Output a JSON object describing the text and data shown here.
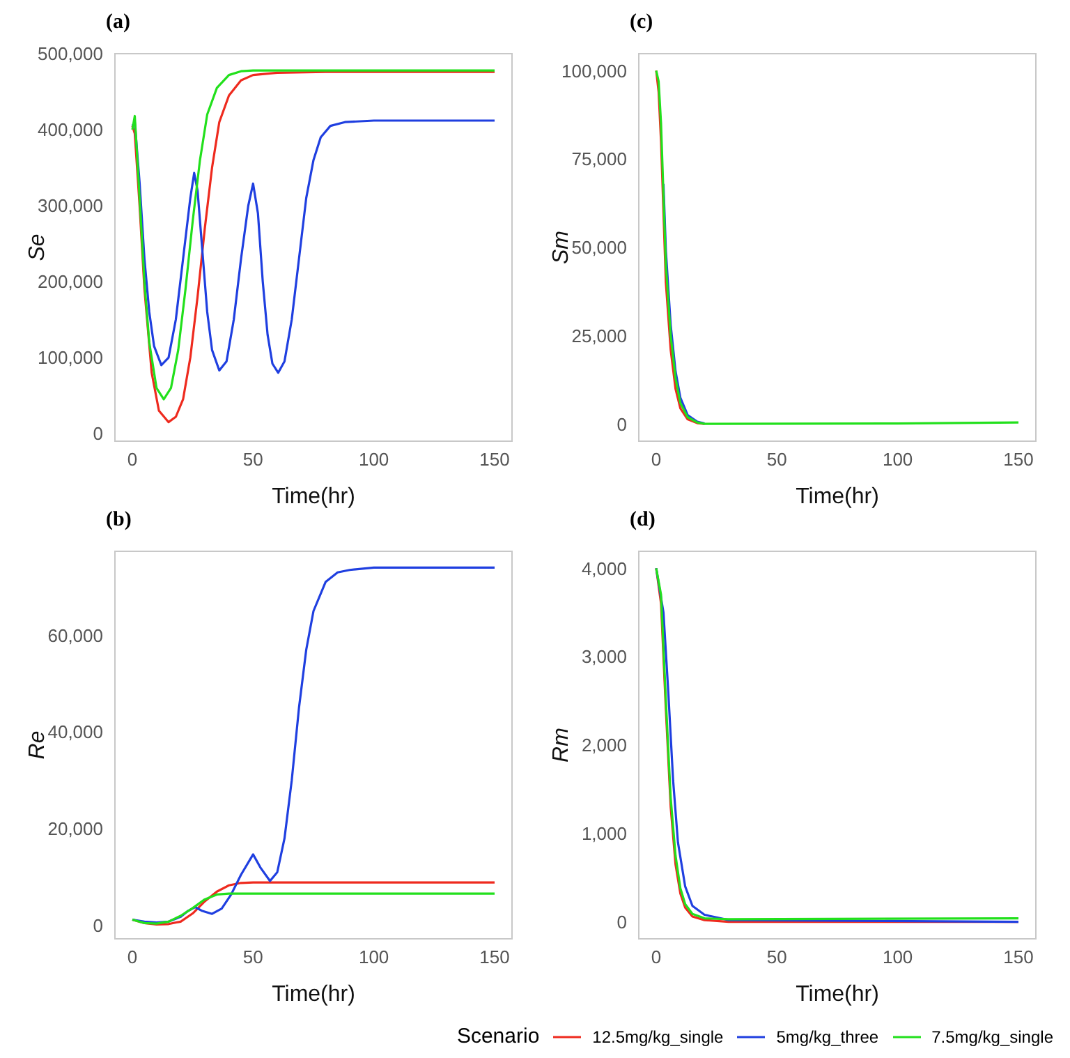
{
  "chart_data": [
    {
      "type": "line",
      "title": "(a)",
      "xlabel": "Time(hr)",
      "ylabel": "Se",
      "xlim": [
        -7.5,
        157.5
      ],
      "xticks": [
        0,
        50,
        100,
        150
      ],
      "ylim": [
        -11000,
        501000
      ],
      "yticks": [
        {
          "value": 0,
          "label": "0"
        },
        {
          "value": 100000,
          "label": "100,000"
        },
        {
          "value": 200000,
          "label": "200,000"
        },
        {
          "value": 300000,
          "label": "300,000"
        },
        {
          "value": 400000,
          "label": "400,000"
        },
        {
          "value": 500000,
          "label": "500,000"
        }
      ],
      "grid": false,
      "series": [
        {
          "color": "#ee2a1e",
          "x": [
            0,
            1,
            3,
            5,
            8,
            11,
            15,
            18,
            21,
            24,
            27,
            30,
            33,
            36,
            40,
            45,
            50,
            60,
            80,
            150
          ],
          "values": [
            405000,
            395000,
            300000,
            190000,
            80000,
            30000,
            15000,
            22000,
            45000,
            100000,
            180000,
            270000,
            350000,
            410000,
            445000,
            465000,
            472000,
            475000,
            476000,
            476000
          ]
        },
        {
          "color": "#1f3fe0",
          "x": [
            0,
            1,
            3,
            5,
            7,
            9,
            12,
            15,
            18,
            21,
            24,
            25.6,
            27,
            29,
            31,
            33,
            36,
            39,
            42,
            45,
            48,
            50,
            52,
            54,
            56,
            58,
            60.4,
            63,
            66,
            69,
            72,
            75,
            78,
            82,
            88,
            100,
            150
          ],
          "values": [
            405000,
            410000,
            330000,
            230000,
            160000,
            115000,
            90000,
            100000,
            150000,
            230000,
            310000,
            343000,
            320000,
            240000,
            160000,
            110000,
            83000,
            95000,
            150000,
            230000,
            300000,
            329000,
            290000,
            200000,
            130000,
            92000,
            80000,
            95000,
            150000,
            230000,
            310000,
            360000,
            390000,
            405000,
            410000,
            412000,
            412000
          ]
        },
        {
          "color": "#22e01c",
          "x": [
            0,
            1,
            3,
            5,
            7,
            10,
            13,
            16,
            19,
            22,
            25,
            28,
            31,
            35,
            40,
            45,
            50,
            150
          ],
          "values": [
            400000,
            418000,
            310000,
            200000,
            120000,
            60000,
            45000,
            60000,
            110000,
            190000,
            280000,
            360000,
            420000,
            455000,
            472000,
            477000,
            478000,
            478000
          ]
        }
      ]
    },
    {
      "type": "line",
      "title": "(c)",
      "xlabel": "Time(hr)",
      "ylabel": "Sm",
      "xlim": [
        -7.5,
        157.5
      ],
      "xticks": [
        0,
        50,
        100,
        150
      ],
      "ylim": [
        -5000,
        105000
      ],
      "yticks": [
        {
          "value": 0,
          "label": "0"
        },
        {
          "value": 25000,
          "label": "25,000"
        },
        {
          "value": 50000,
          "label": "50,000"
        },
        {
          "value": 75000,
          "label": "75,000"
        },
        {
          "value": 100000,
          "label": "100,000"
        }
      ],
      "grid": false,
      "series": [
        {
          "color": "#ee2a1e",
          "x": [
            0,
            1,
            2,
            3,
            4,
            6,
            8,
            10,
            13,
            17,
            20
          ],
          "values": [
            100000,
            94000,
            80000,
            60000,
            40000,
            21000,
            10000,
            4500,
            1400,
            300,
            100
          ]
        },
        {
          "color": "#1f3fe0",
          "x": [
            3,
            4,
            6,
            8,
            10,
            13,
            17,
            20
          ],
          "values": [
            68000,
            49000,
            28000,
            15000,
            7500,
            2600,
            700,
            200
          ]
        },
        {
          "color": "#22e01c",
          "x": [
            0,
            1,
            2,
            3,
            4,
            6,
            8,
            10,
            13,
            17,
            20,
            100,
            150
          ],
          "values": [
            100000,
            97000,
            85000,
            65000,
            45000,
            25000,
            13000,
            6000,
            2000,
            500,
            100,
            200,
            500
          ]
        }
      ]
    },
    {
      "type": "line",
      "title": "(b)",
      "xlabel": "Time(hr)",
      "ylabel": "Re",
      "xlim": [
        -7.5,
        157.5
      ],
      "xticks": [
        0,
        50,
        100,
        150
      ],
      "ylim": [
        -2900,
        77500
      ],
      "yticks": [
        {
          "value": 0,
          "label": "0"
        },
        {
          "value": 20000,
          "label": "20,000"
        },
        {
          "value": 40000,
          "label": "40,000"
        },
        {
          "value": 60000,
          "label": "60,000"
        }
      ],
      "grid": false,
      "series": [
        {
          "color": "#ee2a1e",
          "x": [
            0,
            5,
            10,
            15,
            20,
            25,
            30,
            35,
            40,
            45,
            50,
            150
          ],
          "values": [
            1200,
            500,
            200,
            300,
            800,
            2500,
            5000,
            7000,
            8300,
            8800,
            8900,
            8900
          ]
        },
        {
          "color": "#1f3fe0",
          "x": [
            0,
            5,
            10,
            15,
            20,
            23,
            26,
            29,
            33,
            37,
            41,
            45,
            50,
            53,
            57,
            60,
            63,
            66,
            69,
            72,
            75,
            80,
            85,
            90,
            100,
            150
          ],
          "values": [
            1200,
            800,
            600,
            800,
            1800,
            3000,
            3800,
            3000,
            2400,
            3500,
            6500,
            10500,
            14700,
            12000,
            9200,
            11000,
            18000,
            30000,
            45000,
            57000,
            65000,
            71000,
            73000,
            73500,
            74000,
            74000
          ]
        },
        {
          "color": "#22e01c",
          "x": [
            0,
            5,
            10,
            15,
            20,
            25,
            30,
            35,
            40,
            150
          ],
          "values": [
            1200,
            500,
            400,
            800,
            2000,
            3600,
            5400,
            6400,
            6600,
            6600
          ]
        }
      ]
    },
    {
      "type": "line",
      "title": "(d)",
      "xlabel": "Time(hr)",
      "ylabel": "Rm",
      "xlim": [
        -7.5,
        157.5
      ],
      "xticks": [
        0,
        50,
        100,
        150
      ],
      "ylim": [
        -200,
        4200
      ],
      "yticks": [
        {
          "value": 0,
          "label": "0"
        },
        {
          "value": 1000,
          "label": "1,000"
        },
        {
          "value": 2000,
          "label": "2,000"
        },
        {
          "value": 3000,
          "label": "3,000"
        },
        {
          "value": 4000,
          "label": "4,000"
        }
      ],
      "grid": false,
      "legend": "bottom",
      "legend_title": "Scenario",
      "series": [
        {
          "name": "12.5mg/kg_single",
          "color": "#ee2a1e",
          "x": [
            0,
            2,
            4,
            6,
            8,
            10,
            12,
            15,
            20,
            30,
            150
          ],
          "values": [
            4000,
            3600,
            2400,
            1300,
            650,
            320,
            160,
            60,
            20,
            0,
            0
          ]
        },
        {
          "name": "5mg/kg_three",
          "color": "#1f3fe0",
          "x": [
            0,
            3,
            5,
            7,
            9,
            12,
            15,
            20,
            25,
            30,
            150
          ],
          "values": [
            4000,
            3500,
            2600,
            1600,
            900,
            400,
            180,
            80,
            50,
            20,
            0
          ]
        },
        {
          "name": "7.5mg/kg_single",
          "color": "#22e01c",
          "x": [
            0,
            2,
            4,
            6,
            8,
            10,
            12,
            15,
            20,
            30,
            150
          ],
          "values": [
            4000,
            3700,
            2500,
            1400,
            750,
            380,
            200,
            90,
            40,
            30,
            40
          ]
        }
      ]
    }
  ]
}
